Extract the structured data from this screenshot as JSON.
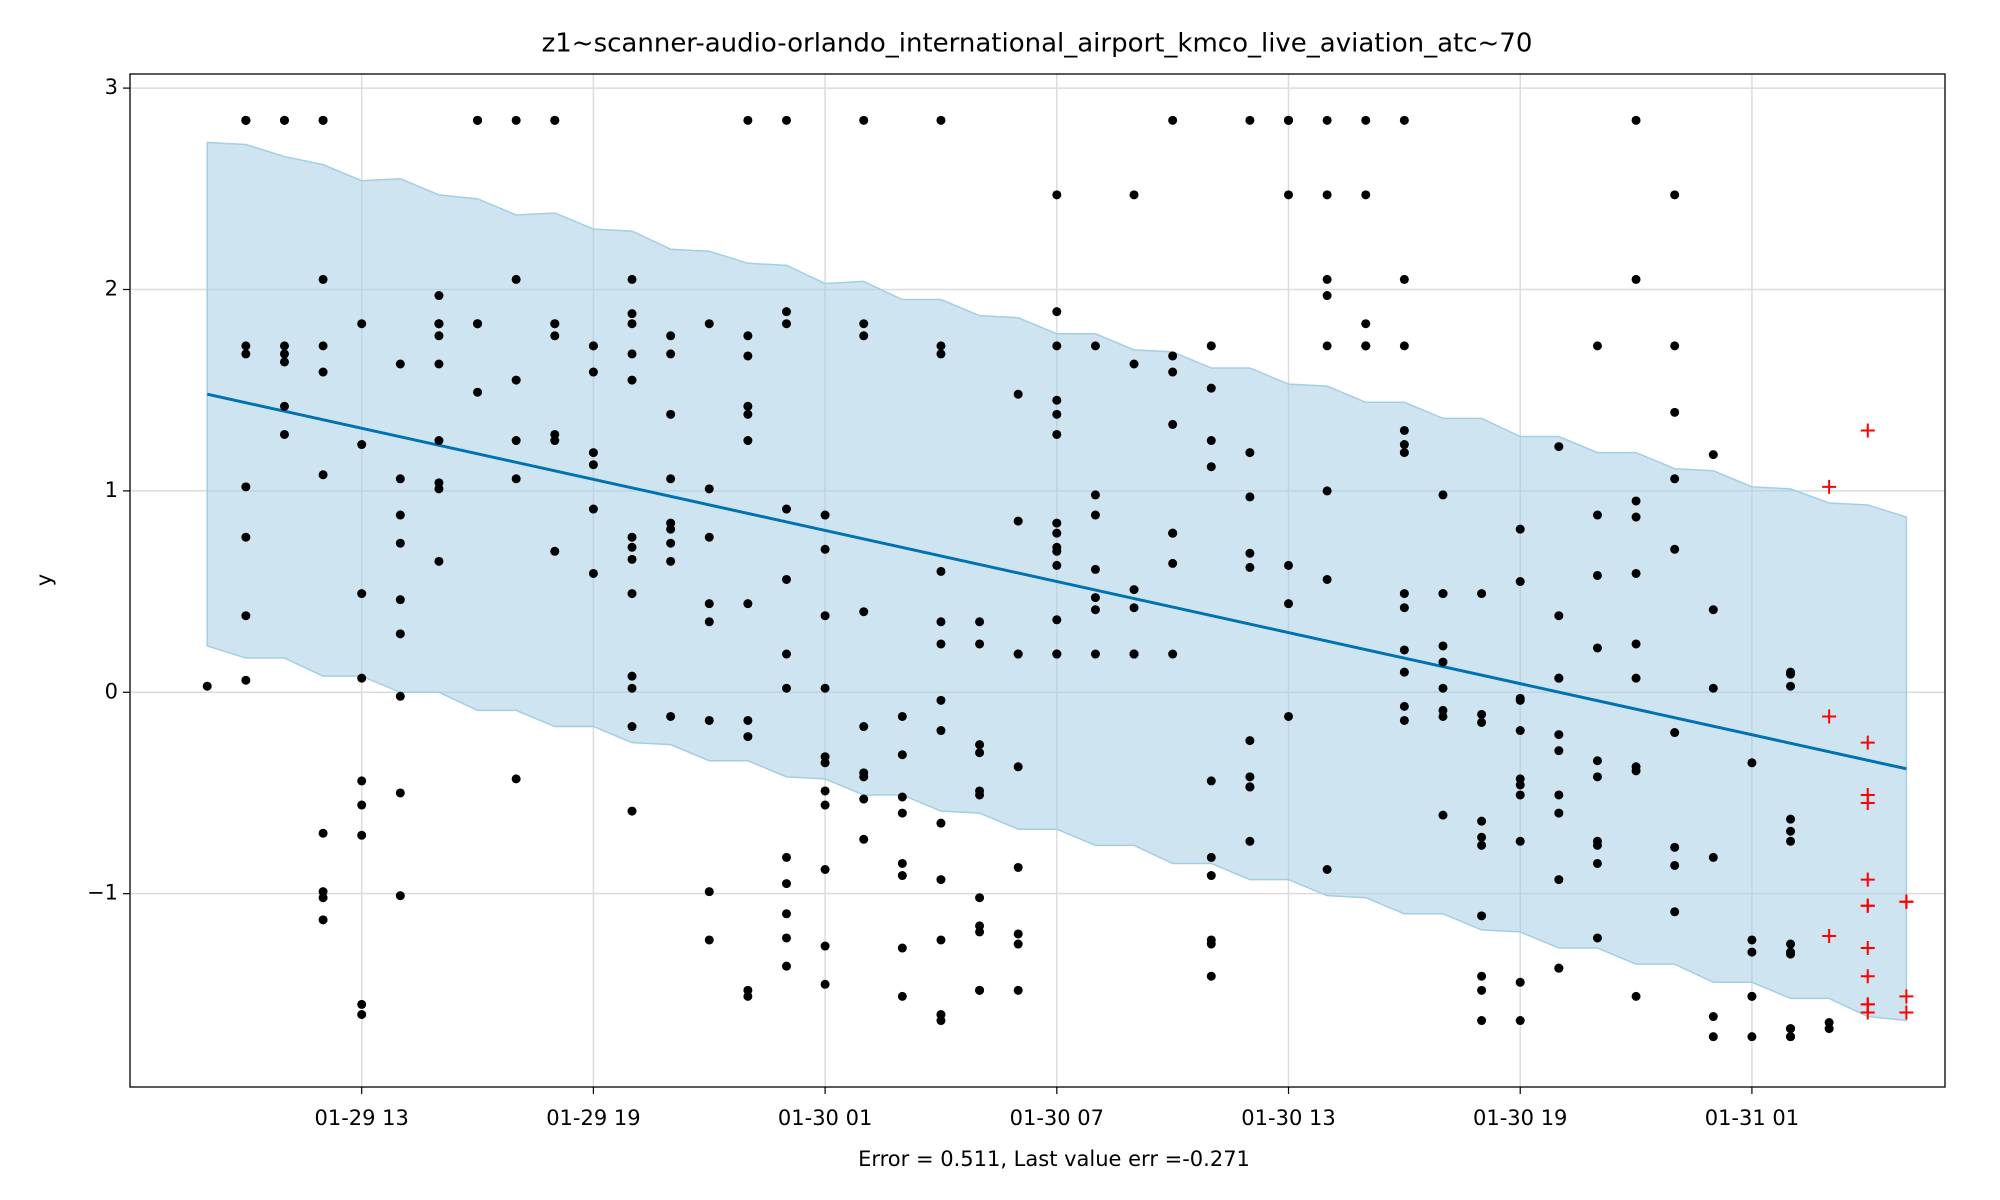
{
  "chart_data": {
    "type": "scatter",
    "title": "z1~scanner-audio-orlando_international_airport_kmco_live_aviation_atc~70",
    "xlabel": "Error = 0.511, Last value err =-0.271",
    "ylabel": "y",
    "xlim": [
      "01-29 07",
      "01-31 06"
    ],
    "xticks": [
      "01-29 13",
      "01-29 19",
      "01-30 01",
      "01-30 07",
      "01-30 13",
      "01-30 19",
      "01-31 01"
    ],
    "ylim": [
      -1.96,
      3.07
    ],
    "yticks": [
      {
        "value": -1,
        "label": "−1"
      },
      0,
      1,
      2,
      3
    ],
    "grid": true,
    "band": {
      "color": "#a6cee3",
      "x": [
        "01-29 09",
        "01-29 10",
        "01-29 11",
        "01-29 12",
        "01-29 13",
        "01-29 14",
        "01-29 15",
        "01-29 16",
        "01-29 17",
        "01-29 18",
        "01-29 19",
        "01-29 20",
        "01-29 21",
        "01-29 22",
        "01-29 23",
        "01-30 00",
        "01-30 01",
        "01-30 02",
        "01-30 03",
        "01-30 04",
        "01-30 05",
        "01-30 06",
        "01-30 07",
        "01-30 08",
        "01-30 09",
        "01-30 10",
        "01-30 11",
        "01-30 12",
        "01-30 13",
        "01-30 14",
        "01-30 15",
        "01-30 16",
        "01-30 17",
        "01-30 18",
        "01-30 19",
        "01-30 20",
        "01-30 21",
        "01-30 22",
        "01-30 23",
        "01-31 00",
        "01-31 01",
        "01-31 02",
        "01-31 03",
        "01-31 04",
        "01-31 05"
      ],
      "upper": [
        2.73,
        2.72,
        2.66,
        2.62,
        2.54,
        2.55,
        2.47,
        2.45,
        2.37,
        2.38,
        2.3,
        2.29,
        2.2,
        2.19,
        2.13,
        2.12,
        2.03,
        2.04,
        1.95,
        1.95,
        1.87,
        1.86,
        1.78,
        1.78,
        1.7,
        1.69,
        1.61,
        1.61,
        1.53,
        1.52,
        1.44,
        1.44,
        1.36,
        1.36,
        1.27,
        1.27,
        1.19,
        1.19,
        1.11,
        1.1,
        1.02,
        1.01,
        0.94,
        0.93,
        0.87
      ],
      "lower": [
        0.23,
        0.17,
        0.17,
        0.08,
        0.08,
        0.0,
        0.0,
        -0.09,
        -0.09,
        -0.17,
        -0.17,
        -0.25,
        -0.26,
        -0.34,
        -0.34,
        -0.42,
        -0.43,
        -0.51,
        -0.51,
        -0.59,
        -0.6,
        -0.68,
        -0.68,
        -0.76,
        -0.76,
        -0.85,
        -0.85,
        -0.93,
        -0.93,
        -1.01,
        -1.02,
        -1.1,
        -1.1,
        -1.18,
        -1.19,
        -1.27,
        -1.27,
        -1.35,
        -1.35,
        -1.44,
        -1.44,
        -1.52,
        -1.52,
        -1.61,
        -1.63
      ]
    },
    "trend": {
      "color": "#0072b2",
      "x": [
        "01-29 09",
        "01-31 05"
      ],
      "values": [
        1.48,
        -0.38
      ]
    },
    "points": {
      "color": "#000000",
      "marker": "dot",
      "groups": [
        {
          "x": "01-29 09",
          "values": [
            0.03
          ]
        },
        {
          "x": "01-29 10",
          "values": [
            1.02,
            0.38,
            2.84,
            0.77,
            2.84,
            0.06,
            1.68,
            2.84,
            1.72,
            2.84
          ]
        },
        {
          "x": "01-29 11",
          "values": [
            1.68,
            2.84,
            1.72,
            1.28,
            2.84,
            1.42,
            1.64
          ]
        },
        {
          "x": "01-29 12",
          "values": [
            2.05,
            1.59,
            2.84,
            1.72,
            2.84,
            -1.02,
            -1.13,
            -0.7,
            -0.99,
            1.08
          ]
        },
        {
          "x": "01-29 13",
          "values": [
            -1.55,
            -1.6,
            -0.56,
            -0.44,
            1.23,
            0.07,
            1.83,
            -0.71,
            0.49
          ]
        },
        {
          "x": "01-29 14",
          "values": [
            -1.01,
            -0.5,
            -0.02,
            0.46,
            0.29,
            0.74,
            0.88,
            1.06,
            1.63
          ]
        },
        {
          "x": "01-29 15",
          "values": [
            0.65,
            1.01,
            1.83,
            1.97,
            1.04,
            1.77,
            1.83,
            1.25,
            1.63,
            1.83
          ]
        },
        {
          "x": "01-29 16",
          "values": [
            2.84,
            1.83,
            1.49,
            1.83,
            2.84,
            2.84,
            1.83
          ]
        },
        {
          "x": "01-29 17",
          "values": [
            1.06,
            1.25,
            2.05,
            1.55,
            -0.43,
            2.84
          ]
        },
        {
          "x": "01-29 18",
          "values": [
            1.83,
            2.84,
            1.28,
            1.83,
            0.7,
            1.25,
            1.77,
            2.84
          ]
        },
        {
          "x": "01-29 19",
          "values": [
            1.19,
            1.13,
            0.91,
            0.59,
            1.72,
            1.72,
            1.59
          ]
        },
        {
          "x": "01-29 20",
          "values": [
            0.66,
            0.72,
            0.02,
            0.08,
            -0.17,
            0.49,
            -0.59,
            2.05,
            1.55,
            1.88,
            0.77,
            1.83,
            1.68
          ]
        },
        {
          "x": "01-29 21",
          "values": [
            1.38,
            0.74,
            0.81,
            -0.12,
            1.06,
            0.84,
            1.77,
            1.68,
            0.65
          ]
        },
        {
          "x": "01-29 22",
          "values": [
            0.35,
            0.44,
            1.83,
            1.01,
            -0.99,
            -1.23,
            -0.14,
            0.77
          ]
        },
        {
          "x": "01-29 23",
          "values": [
            1.77,
            2.84,
            0.44,
            1.67,
            -1.48,
            1.38,
            -0.14,
            1.42,
            1.25,
            -0.22,
            -1.51
          ]
        },
        {
          "x": "01-30 00",
          "values": [
            0.56,
            0.19,
            0.02,
            0.91,
            2.84,
            1.89,
            1.83,
            -1.1,
            -1.36,
            -1.22,
            -0.95,
            -0.82
          ]
        },
        {
          "x": "01-30 01",
          "values": [
            0.88,
            -0.32,
            0.02,
            -0.56,
            -1.26,
            0.38,
            -0.88,
            -0.35,
            -1.45,
            -0.49,
            0.71
          ]
        },
        {
          "x": "01-30 02",
          "values": [
            -0.73,
            -0.17,
            2.84,
            1.77,
            1.83,
            -0.4,
            0.4,
            -0.42,
            -0.53
          ]
        },
        {
          "x": "01-30 03",
          "values": [
            -0.6,
            -0.91,
            -0.52,
            -1.27,
            -1.51,
            -0.31,
            -0.12,
            -0.85
          ]
        },
        {
          "x": "01-30 04",
          "values": [
            -0.93,
            -0.04,
            0.24,
            -0.65,
            -1.23,
            -0.19,
            -1.6,
            -1.63,
            2.84,
            1.68,
            1.72,
            0.6,
            0.35
          ]
        },
        {
          "x": "01-30 05",
          "values": [
            0.35,
            0.24,
            -0.49,
            -1.02,
            -0.3,
            -0.26,
            -0.51,
            -1.16,
            -1.48,
            -1.19,
            -1.48
          ]
        },
        {
          "x": "01-30 06",
          "values": [
            -0.37,
            -1.25,
            -0.87,
            -1.2,
            -1.48,
            0.19,
            0.19,
            1.48,
            0.85
          ]
        },
        {
          "x": "01-30 07",
          "values": [
            1.38,
            0.79,
            1.72,
            2.47,
            0.72,
            0.19,
            0.7,
            1.28,
            1.45,
            1.89,
            0.84,
            0.36,
            0.63,
            0.19
          ]
        },
        {
          "x": "01-30 08",
          "values": [
            0.88,
            0.19,
            0.47,
            0.61,
            0.98,
            1.72,
            0.41
          ]
        },
        {
          "x": "01-30 09",
          "values": [
            0.19,
            0.42,
            1.63,
            0.19,
            2.47,
            0.19,
            0.51,
            0.19
          ]
        },
        {
          "x": "01-30 10",
          "values": [
            0.19,
            0.79,
            0.64,
            2.84,
            1.59,
            1.67,
            1.33,
            0.79
          ]
        },
        {
          "x": "01-30 11",
          "values": [
            1.12,
            -0.91,
            1.25,
            -1.25,
            -0.44,
            1.51,
            1.72,
            1.72,
            -0.82,
            -1.41,
            -1.23
          ]
        },
        {
          "x": "01-30 12",
          "values": [
            -0.42,
            -0.47,
            -0.74,
            1.19,
            -0.47,
            2.84,
            0.69,
            -0.24,
            0.97,
            0.62
          ]
        },
        {
          "x": "01-30 13",
          "values": [
            2.84,
            0.44,
            -0.12,
            2.47,
            0.63,
            2.84,
            2.84
          ]
        },
        {
          "x": "01-30 14",
          "values": [
            2.47,
            0.56,
            1.97,
            -0.88,
            2.05,
            1.0,
            1.72,
            2.84
          ]
        },
        {
          "x": "01-30 15",
          "values": [
            1.72,
            1.83,
            2.84,
            1.72,
            2.47,
            1.72
          ]
        },
        {
          "x": "01-30 16",
          "values": [
            2.05,
            1.72,
            2.84,
            1.3,
            1.23,
            0.42,
            0.21,
            -0.07,
            0.49,
            0.1,
            1.19,
            -0.14
          ]
        },
        {
          "x": "01-30 17",
          "values": [
            0.98,
            0.49,
            0.23,
            0.15,
            -0.12,
            -0.09,
            0.49,
            0.02,
            -0.61
          ]
        },
        {
          "x": "01-30 18",
          "values": [
            -0.15,
            -0.11,
            -0.64,
            0.49,
            -1.11,
            -0.76,
            -0.72,
            -1.48,
            -1.63,
            -1.41
          ]
        },
        {
          "x": "01-30 19",
          "values": [
            -0.74,
            -1.44,
            -1.63,
            -0.43,
            -0.04,
            0.81,
            -0.51,
            -0.46,
            0.55,
            -0.03,
            -0.19
          ]
        },
        {
          "x": "01-30 20",
          "values": [
            -0.6,
            -1.37,
            -0.29,
            0.07,
            -0.93,
            1.22,
            0.07,
            -0.51,
            -0.21,
            -1.37,
            0.38
          ]
        },
        {
          "x": "01-30 21",
          "values": [
            0.88,
            -0.42,
            -0.85,
            -1.22,
            0.22,
            0.58,
            1.72,
            -0.34,
            -0.74,
            -0.76
          ]
        },
        {
          "x": "01-30 22",
          "values": [
            -1.51,
            -0.37,
            0.07,
            2.05,
            0.87,
            -0.39,
            0.95,
            0.59,
            2.84,
            0.24
          ]
        },
        {
          "x": "01-30 23",
          "values": [
            1.72,
            2.47,
            0.71,
            1.06,
            1.39,
            -0.86,
            -0.77,
            -1.09,
            -0.2
          ]
        },
        {
          "x": "01-31 00",
          "values": [
            0.02,
            1.18,
            -0.82,
            0.41,
            -1.71,
            -1.61
          ]
        },
        {
          "x": "01-31 01",
          "values": [
            -1.29,
            -1.51,
            -0.35,
            -1.23,
            -1.51,
            -1.71
          ]
        },
        {
          "x": "01-31 02",
          "values": [
            -1.71,
            -1.29,
            -1.71,
            0.09,
            0.03,
            -0.63,
            -0.69,
            0.1,
            -0.74,
            -1.67,
            -1.3,
            -1.67,
            -1.25
          ]
        },
        {
          "x": "01-31 03",
          "values": [
            -1.67,
            -1.64
          ]
        }
      ]
    },
    "forecast": {
      "color": "#ff0000",
      "marker": "plus",
      "groups": [
        {
          "x": "01-31 03",
          "values": [
            1.02,
            -1.21,
            -0.12
          ]
        },
        {
          "x": "01-31 04",
          "values": [
            -1.06,
            -1.59,
            -1.55,
            -0.25,
            -1.06,
            -1.41,
            -1.55,
            -0.93,
            -1.27,
            1.3,
            -0.51,
            -0.55
          ]
        },
        {
          "x": "01-31 05",
          "values": [
            -1.04,
            -1.51,
            -1.04,
            -1.59
          ]
        }
      ]
    }
  }
}
